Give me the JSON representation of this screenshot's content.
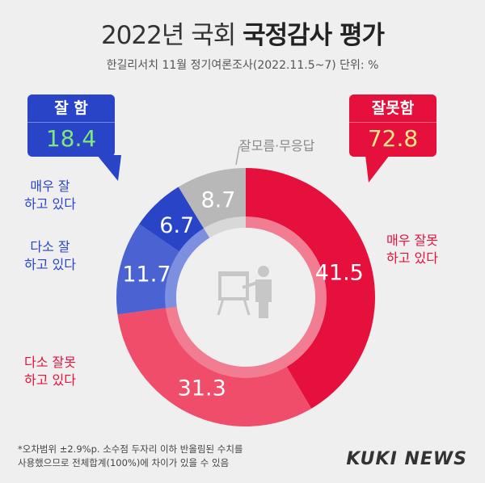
{
  "title_light": "2022년 국회",
  "title_bold": "국정감사 평가",
  "subtitle": "한길리서치 11월 정기여론조사(2022.11.5~7) 단위: %",
  "summary": {
    "good_label": "잘 함",
    "good_value": "18.4",
    "bad_label": "잘못함",
    "bad_value": "72.8"
  },
  "labels": {
    "very_good": [
      "매우 잘",
      "하고 있다"
    ],
    "some_good": [
      "다소 잘",
      "하고 있다"
    ],
    "unsure": "잘모름·무응답",
    "very_bad": [
      "매우 잘못",
      "하고 있다"
    ],
    "some_bad": [
      "다소 잘못",
      "하고 있다"
    ]
  },
  "footnote": [
    "*오차범위 ±2.9%p. 소수점 두자리 이하 반올림된 수치를",
    "사용했으므로 전체합계(100%)에 차이가 있을 수 있음"
  ],
  "brand": "KUKI NEWS",
  "colors": {
    "very_bad": "#e5103c",
    "some_bad": "#ef4d6a",
    "unsure": "#b8b8b8",
    "very_good": "#2a44c8",
    "some_good": "#4a62d2",
    "inner_ring_red": "#f27d93",
    "inner_ring_blue": "#7d8fe0",
    "inner_ring_gray": "#d8d8d8"
  },
  "chart_data": {
    "type": "pie",
    "title": "2022년 국회 국정감사 평가",
    "unit": "%",
    "categories": [
      "매우 잘못 하고 있다",
      "다소 잘못 하고 있다",
      "다소 잘 하고 있다",
      "매우 잘 하고 있다",
      "잘모름·무응답"
    ],
    "values": [
      41.5,
      31.3,
      11.7,
      6.7,
      8.7
    ],
    "groups": [
      {
        "name": "잘못함",
        "value": 72.8
      },
      {
        "name": "잘 함",
        "value": 18.4
      }
    ]
  }
}
